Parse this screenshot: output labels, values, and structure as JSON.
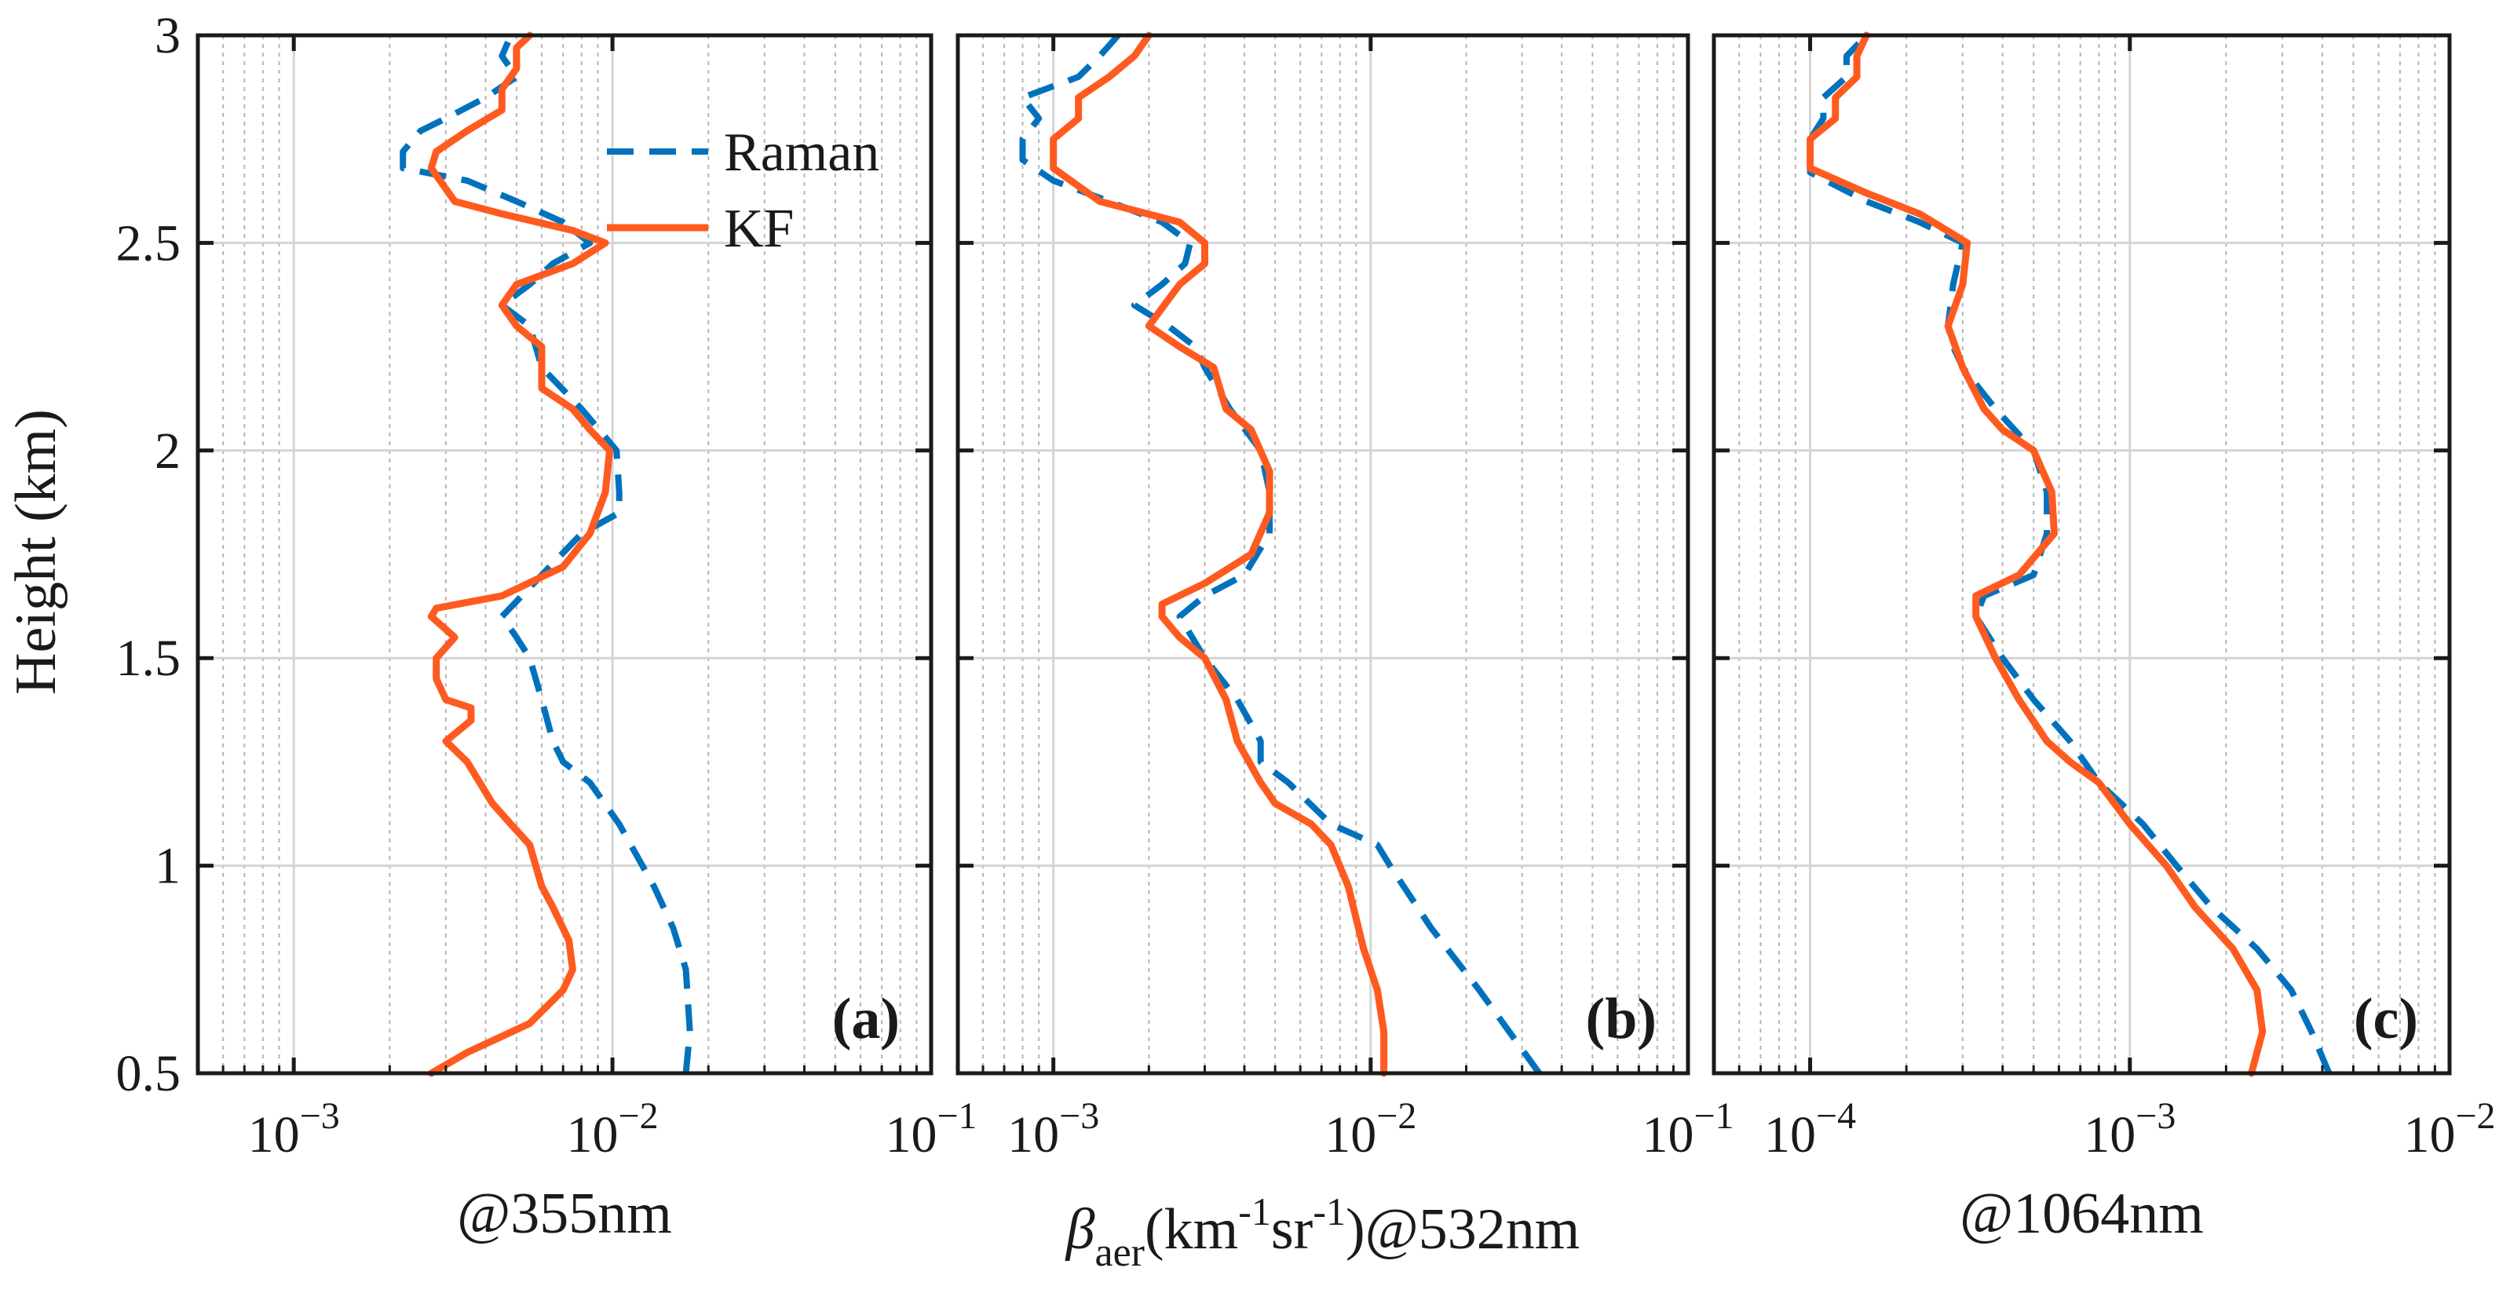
{
  "colors": {
    "raman": "#0072BD",
    "kf": "#FF5A1F",
    "axis": "#1a1a1a",
    "grid_major": "#d4d4d4",
    "grid_minor": "#b5b5b5"
  },
  "legend": {
    "entries": [
      "Raman",
      "KF"
    ],
    "placement": "top-left of panel (a)"
  },
  "chart_data": [
    {
      "type": "line",
      "panel_label": "(a)",
      "xlabel": "@355nm",
      "ylabel": "Height (km)",
      "xscale": "log",
      "xlim": [
        0.0005,
        0.1
      ],
      "ylim": [
        0.5,
        3
      ],
      "xticks": [
        0.001,
        0.01,
        0.1
      ],
      "xtick_labels": [
        {
          "base": "10",
          "exp": "−3"
        },
        {
          "base": "10",
          "exp": "−2"
        },
        {
          "base": "10",
          "exp": "−1"
        }
      ],
      "yticks": [
        0.5,
        1,
        1.5,
        2,
        2.5,
        3
      ],
      "ytick_labels": [
        "0.5",
        "1",
        "1.5",
        "2",
        "2.5",
        "3"
      ],
      "series": [
        {
          "name": "Raman",
          "style": "dashed",
          "points": [
            [
              0.017,
              0.5
            ],
            [
              0.0175,
              0.6
            ],
            [
              0.017,
              0.75
            ],
            [
              0.0155,
              0.85
            ],
            [
              0.0135,
              0.95
            ],
            [
              0.0105,
              1.1
            ],
            [
              0.0085,
              1.2
            ],
            [
              0.007,
              1.25
            ],
            [
              0.0065,
              1.3
            ],
            [
              0.006,
              1.4
            ],
            [
              0.0055,
              1.5
            ],
            [
              0.005,
              1.55
            ],
            [
              0.0045,
              1.6
            ],
            [
              0.006,
              1.7
            ],
            [
              0.008,
              1.8
            ],
            [
              0.0105,
              1.85
            ],
            [
              0.0105,
              1.9
            ],
            [
              0.0103,
              2.0
            ],
            [
              0.008,
              2.1
            ],
            [
              0.006,
              2.2
            ],
            [
              0.0055,
              2.3
            ],
            [
              0.0045,
              2.35
            ],
            [
              0.0055,
              2.4
            ],
            [
              0.0065,
              2.45
            ],
            [
              0.0085,
              2.5
            ],
            [
              0.007,
              2.55
            ],
            [
              0.005,
              2.6
            ],
            [
              0.0035,
              2.65
            ],
            [
              0.0022,
              2.68
            ],
            [
              0.0022,
              2.72
            ],
            [
              0.0025,
              2.77
            ],
            [
              0.003,
              2.8
            ],
            [
              0.004,
              2.85
            ],
            [
              0.005,
              2.9
            ],
            [
              0.0045,
              2.95
            ],
            [
              0.0048,
              3.0
            ]
          ]
        },
        {
          "name": "KF",
          "style": "solid",
          "points": [
            [
              0.0027,
              0.5
            ],
            [
              0.0035,
              0.55
            ],
            [
              0.0055,
              0.62
            ],
            [
              0.007,
              0.7
            ],
            [
              0.0075,
              0.75
            ],
            [
              0.0073,
              0.82
            ],
            [
              0.0065,
              0.9
            ],
            [
              0.006,
              0.95
            ],
            [
              0.0055,
              1.05
            ],
            [
              0.0048,
              1.1
            ],
            [
              0.0042,
              1.15
            ],
            [
              0.0035,
              1.25
            ],
            [
              0.003,
              1.3
            ],
            [
              0.0036,
              1.35
            ],
            [
              0.0036,
              1.38
            ],
            [
              0.003,
              1.4
            ],
            [
              0.0028,
              1.45
            ],
            [
              0.0028,
              1.5
            ],
            [
              0.0032,
              1.55
            ],
            [
              0.0027,
              1.6
            ],
            [
              0.0028,
              1.62
            ],
            [
              0.0045,
              1.65
            ],
            [
              0.007,
              1.72
            ],
            [
              0.0085,
              1.8
            ],
            [
              0.0095,
              1.9
            ],
            [
              0.0098,
              2.0
            ],
            [
              0.0085,
              2.05
            ],
            [
              0.0075,
              2.1
            ],
            [
              0.006,
              2.15
            ],
            [
              0.006,
              2.25
            ],
            [
              0.005,
              2.3
            ],
            [
              0.0045,
              2.35
            ],
            [
              0.005,
              2.4
            ],
            [
              0.0075,
              2.45
            ],
            [
              0.0095,
              2.5
            ],
            [
              0.0075,
              2.53
            ],
            [
              0.0045,
              2.57
            ],
            [
              0.0032,
              2.6
            ],
            [
              0.0027,
              2.68
            ],
            [
              0.0028,
              2.72
            ],
            [
              0.0035,
              2.77
            ],
            [
              0.0045,
              2.82
            ],
            [
              0.0045,
              2.87
            ],
            [
              0.005,
              2.92
            ],
            [
              0.005,
              2.97
            ],
            [
              0.0055,
              3.0
            ]
          ]
        }
      ]
    },
    {
      "type": "line",
      "panel_label": "(b)",
      "xlabel": "βaer(km-1sr-1)@532nm",
      "xlabel_parts": {
        "symbol": "β",
        "subscript": "aer",
        "open": "(km",
        "exp1": "-1",
        "middle": "sr",
        "exp2": "-1",
        "close": ")@532nm"
      },
      "xscale": "log",
      "xlim": [
        0.0005,
        0.1
      ],
      "ylim": [
        0.5,
        3
      ],
      "xticks": [
        0.001,
        0.01,
        0.1
      ],
      "xtick_labels": [
        {
          "base": "10",
          "exp": "−3"
        },
        {
          "base": "10",
          "exp": "−2"
        },
        {
          "base": "10",
          "exp": "−1"
        }
      ],
      "series": [
        {
          "name": "Raman",
          "style": "dashed",
          "points": [
            [
              0.034,
              0.5
            ],
            [
              0.022,
              0.7
            ],
            [
              0.0155,
              0.85
            ],
            [
              0.0115,
              1.0
            ],
            [
              0.0105,
              1.05
            ],
            [
              0.0075,
              1.1
            ],
            [
              0.0055,
              1.2
            ],
            [
              0.0045,
              1.25
            ],
            [
              0.0045,
              1.3
            ],
            [
              0.0038,
              1.4
            ],
            [
              0.003,
              1.5
            ],
            [
              0.0025,
              1.6
            ],
            [
              0.003,
              1.65
            ],
            [
              0.004,
              1.7
            ],
            [
              0.0048,
              1.8
            ],
            [
              0.0048,
              1.9
            ],
            [
              0.0045,
              2.0
            ],
            [
              0.0036,
              2.1
            ],
            [
              0.003,
              2.2
            ],
            [
              0.0028,
              2.25
            ],
            [
              0.0023,
              2.3
            ],
            [
              0.0018,
              2.35
            ],
            [
              0.0022,
              2.4
            ],
            [
              0.0026,
              2.45
            ],
            [
              0.0027,
              2.5
            ],
            [
              0.0022,
              2.55
            ],
            [
              0.0015,
              2.6
            ],
            [
              0.001,
              2.65
            ],
            [
              0.0008,
              2.7
            ],
            [
              0.0008,
              2.75
            ],
            [
              0.0009,
              2.8
            ],
            [
              0.0008,
              2.85
            ],
            [
              0.0012,
              2.9
            ],
            [
              0.0014,
              2.95
            ],
            [
              0.0016,
              3.0
            ]
          ]
        },
        {
          "name": "KF",
          "style": "solid",
          "points": [
            [
              0.011,
              0.5
            ],
            [
              0.011,
              0.6
            ],
            [
              0.0105,
              0.7
            ],
            [
              0.0095,
              0.8
            ],
            [
              0.0085,
              0.95
            ],
            [
              0.0075,
              1.05
            ],
            [
              0.0065,
              1.1
            ],
            [
              0.005,
              1.15
            ],
            [
              0.0045,
              1.2
            ],
            [
              0.0038,
              1.3
            ],
            [
              0.0035,
              1.4
            ],
            [
              0.003,
              1.5
            ],
            [
              0.0025,
              1.55
            ],
            [
              0.0022,
              1.6
            ],
            [
              0.0022,
              1.63
            ],
            [
              0.003,
              1.68
            ],
            [
              0.0042,
              1.75
            ],
            [
              0.0048,
              1.85
            ],
            [
              0.0048,
              1.95
            ],
            [
              0.0042,
              2.05
            ],
            [
              0.0035,
              2.1
            ],
            [
              0.0032,
              2.2
            ],
            [
              0.0025,
              2.25
            ],
            [
              0.002,
              2.3
            ],
            [
              0.0025,
              2.4
            ],
            [
              0.003,
              2.45
            ],
            [
              0.003,
              2.5
            ],
            [
              0.0025,
              2.55
            ],
            [
              0.0014,
              2.6
            ],
            [
              0.001,
              2.68
            ],
            [
              0.001,
              2.75
            ],
            [
              0.0012,
              2.8
            ],
            [
              0.0012,
              2.85
            ],
            [
              0.0015,
              2.9
            ],
            [
              0.0018,
              2.95
            ],
            [
              0.002,
              3.0
            ]
          ]
        }
      ]
    },
    {
      "type": "line",
      "panel_label": "(c)",
      "xlabel": "@1064nm",
      "xscale": "log",
      "xlim": [
        5e-05,
        0.01
      ],
      "ylim": [
        0.5,
        3
      ],
      "xticks": [
        0.0001,
        0.001,
        0.01
      ],
      "xtick_labels": [
        {
          "base": "10",
          "exp": "−4"
        },
        {
          "base": "10",
          "exp": "−3"
        },
        {
          "base": "10",
          "exp": "−2"
        }
      ],
      "series": [
        {
          "name": "Raman",
          "style": "dashed",
          "points": [
            [
              0.0042,
              0.5
            ],
            [
              0.0037,
              0.6
            ],
            [
              0.0032,
              0.7
            ],
            [
              0.0025,
              0.8
            ],
            [
              0.0018,
              0.9
            ],
            [
              0.0014,
              1.0
            ],
            [
              0.0011,
              1.1
            ],
            [
              0.0008,
              1.2
            ],
            [
              0.00065,
              1.3
            ],
            [
              0.0005,
              1.4
            ],
            [
              0.0004,
              1.5
            ],
            [
              0.00033,
              1.6
            ],
            [
              0.00035,
              1.65
            ],
            [
              0.0005,
              1.7
            ],
            [
              0.00055,
              1.8
            ],
            [
              0.00055,
              1.9
            ],
            [
              0.0005,
              2.0
            ],
            [
              0.00038,
              2.1
            ],
            [
              0.0003,
              2.2
            ],
            [
              0.00028,
              2.25
            ],
            [
              0.00027,
              2.3
            ],
            [
              0.00028,
              2.4
            ],
            [
              0.0003,
              2.5
            ],
            [
              0.00022,
              2.55
            ],
            [
              0.00015,
              2.6
            ],
            [
              0.0001,
              2.67
            ],
            [
              0.0001,
              2.75
            ],
            [
              0.00011,
              2.8
            ],
            [
              0.00011,
              2.85
            ],
            [
              0.00013,
              2.9
            ],
            [
              0.00013,
              2.95
            ],
            [
              0.00015,
              3.0
            ]
          ]
        },
        {
          "name": "KF",
          "style": "solid",
          "points": [
            [
              0.0024,
              0.5
            ],
            [
              0.0026,
              0.6
            ],
            [
              0.0025,
              0.7
            ],
            [
              0.0021,
              0.8
            ],
            [
              0.0016,
              0.9
            ],
            [
              0.0013,
              1.0
            ],
            [
              0.001,
              1.1
            ],
            [
              0.0008,
              1.2
            ],
            [
              0.00065,
              1.25
            ],
            [
              0.00055,
              1.3
            ],
            [
              0.00045,
              1.4
            ],
            [
              0.00038,
              1.5
            ],
            [
              0.00033,
              1.6
            ],
            [
              0.00033,
              1.65
            ],
            [
              0.00045,
              1.7
            ],
            [
              0.00058,
              1.8
            ],
            [
              0.00057,
              1.9
            ],
            [
              0.0005,
              2.0
            ],
            [
              0.0004,
              2.05
            ],
            [
              0.00035,
              2.1
            ],
            [
              0.0003,
              2.2
            ],
            [
              0.00027,
              2.3
            ],
            [
              0.0003,
              2.4
            ],
            [
              0.00031,
              2.5
            ],
            [
              0.00022,
              2.57
            ],
            [
              0.00015,
              2.62
            ],
            [
              0.0001,
              2.68
            ],
            [
              0.0001,
              2.75
            ],
            [
              0.00012,
              2.8
            ],
            [
              0.00012,
              2.85
            ],
            [
              0.00014,
              2.9
            ],
            [
              0.00014,
              2.95
            ],
            [
              0.00015,
              3.0
            ]
          ]
        }
      ]
    }
  ]
}
